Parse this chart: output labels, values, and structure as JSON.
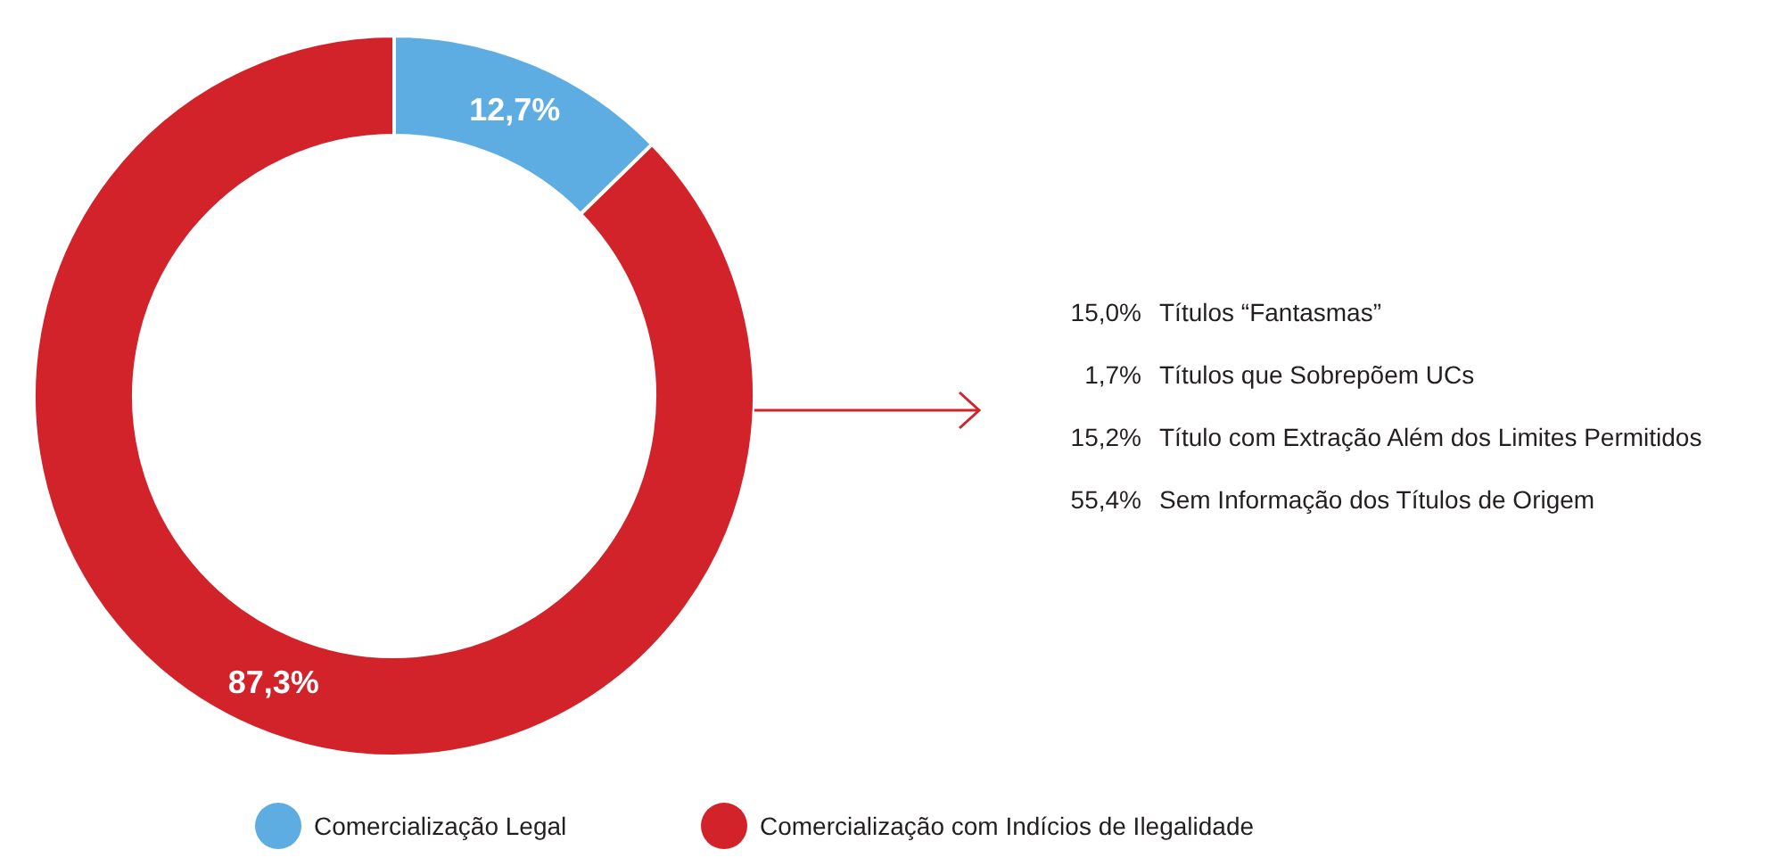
{
  "chart_data": {
    "type": "donut",
    "categories": [
      "Comercialização Legal",
      "Comercialização com Indícios de Ilegalidade"
    ],
    "values": [
      12.7,
      87.3
    ],
    "colors": [
      "#5dade2",
      "#d2232a"
    ],
    "value_labels": [
      "12,7%",
      "87,3%"
    ],
    "legend": "bottom",
    "annotations": [
      "15,0% Títulos “Fantasmas”",
      "1,7% Títulos que Sobrepõem UCs",
      "15,2% Título com Extração Além dos Limites Permitidos",
      "55,4% Sem Informação dos Títulos de Origem"
    ]
  }
}
